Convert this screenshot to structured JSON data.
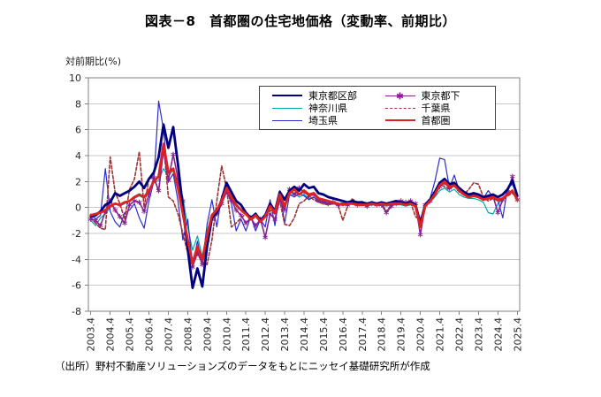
{
  "source": "（出所）野村不動産ソリューションズのデータをもとにニッセイ基礎研究所が作成",
  "chart_data": {
    "type": "line",
    "title": "図表－8　首都圏の住宅地価格（変動率、前期比）",
    "ylabel": "対前期比(%)",
    "xlabel": "",
    "ylim": [
      -8,
      10
    ],
    "y_ticks": [
      10,
      8,
      6,
      4,
      2,
      0,
      -2,
      -4,
      -6,
      -8
    ],
    "grid": true,
    "legend_position": "top-inside",
    "x_frequency": "quarterly",
    "x_start": "2003.4",
    "x_end": "2025.4",
    "x_tick_labels": [
      "2003.4",
      "2004.4",
      "2005.4",
      "2006.4",
      "2007.4",
      "2008.4",
      "2009.4",
      "2010.4",
      "2011.4",
      "2012.4",
      "2013.4",
      "2014.4",
      "2015.4",
      "2016.4",
      "2017.4",
      "2018.4",
      "2019.4",
      "2020.4",
      "2021.4",
      "2022.4",
      "2023.4",
      "2024.4",
      "2025.4"
    ],
    "draw_order": [
      "神奈川県",
      "埼玉県",
      "千葉県",
      "東京都下",
      "東京都区部",
      "首都圏"
    ],
    "series": [
      {
        "name": "東京都区部",
        "color": "#000080",
        "width": 2.8,
        "style": "solid",
        "marker": "none",
        "values": [
          -0.7,
          -0.6,
          -0.3,
          0.2,
          0.4,
          1.1,
          0.9,
          1.1,
          1.3,
          1.6,
          2.0,
          1.5,
          2.2,
          2.7,
          3.9,
          6.4,
          4.6,
          6.2,
          3.3,
          0.0,
          -3.2,
          -6.2,
          -4.7,
          -6.1,
          -3.0,
          -0.8,
          -0.4,
          0.6,
          1.9,
          1.2,
          0.5,
          0.2,
          -0.4,
          -0.8,
          -0.5,
          -1.0,
          -0.6,
          0.3,
          -0.3,
          1.2,
          0.6,
          1.3,
          1.6,
          1.3,
          1.8,
          1.5,
          1.6,
          1.1,
          1.0,
          0.8,
          0.7,
          0.6,
          0.5,
          0.4,
          0.5,
          0.4,
          0.4,
          0.3,
          0.4,
          0.3,
          0.4,
          0.3,
          0.4,
          0.5,
          0.4,
          0.3,
          0.4,
          0.2,
          -1.2,
          0.2,
          0.6,
          1.2,
          1.9,
          2.2,
          1.8,
          1.9,
          1.5,
          1.2,
          1.0,
          1.1,
          1.0,
          0.8,
          0.9,
          1.0,
          0.8,
          1.0,
          1.4,
          2.1,
          0.9
        ]
      },
      {
        "name": "神奈川県",
        "color": "#00A8A8",
        "width": 1.2,
        "style": "solid",
        "marker": "none",
        "values": [
          -1.0,
          -1.4,
          -0.8,
          -0.5,
          0.0,
          0.3,
          0.1,
          0.3,
          0.5,
          0.7,
          0.9,
          0.7,
          1.4,
          1.9,
          2.1,
          3.0,
          2.4,
          2.9,
          2.0,
          0.8,
          -1.5,
          -3.3,
          -2.2,
          -3.8,
          -1.8,
          -0.5,
          -0.2,
          0.4,
          1.2,
          0.7,
          0.1,
          -0.2,
          -0.5,
          -0.8,
          -0.4,
          -0.9,
          -0.5,
          0.2,
          -0.2,
          0.8,
          0.2,
          0.9,
          1.1,
          0.8,
          1.0,
          0.7,
          0.8,
          0.5,
          0.4,
          0.4,
          0.3,
          0.3,
          0.2,
          0.3,
          0.3,
          0.2,
          0.2,
          0.1,
          0.2,
          0.2,
          0.2,
          0.1,
          0.2,
          0.2,
          0.2,
          0.1,
          0.2,
          0.1,
          -0.9,
          0.1,
          0.4,
          0.8,
          1.3,
          1.5,
          1.2,
          1.4,
          1.0,
          0.8,
          0.7,
          0.7,
          0.6,
          0.4,
          -0.4,
          -0.5,
          0.3,
          0.6,
          1.0,
          1.2,
          0.5
        ]
      },
      {
        "name": "埼玉県",
        "color": "#2D2DCB",
        "width": 1.2,
        "style": "solid",
        "marker": "none",
        "values": [
          -0.5,
          -0.9,
          -0.6,
          3.0,
          -0.3,
          -1.1,
          -1.5,
          -0.4,
          -0.2,
          0.3,
          -0.8,
          -1.6,
          0.5,
          2.0,
          8.2,
          6.0,
          2.0,
          2.6,
          0.5,
          -2.5,
          -0.9,
          -4.5,
          -2.6,
          -4.4,
          -1.3,
          0.6,
          -1.5,
          0.9,
          1.4,
          0.3,
          -1.8,
          -0.9,
          -1.8,
          -0.7,
          -1.8,
          -0.9,
          -1.5,
          0.6,
          -1.4,
          1.3,
          -1.2,
          1.0,
          0.8,
          1.1,
          0.9,
          0.6,
          0.8,
          0.4,
          0.5,
          0.3,
          0.4,
          0.2,
          0.3,
          0.2,
          0.3,
          0.3,
          0.2,
          0.2,
          0.3,
          0.2,
          0.3,
          0.2,
          0.3,
          0.4,
          0.3,
          0.2,
          0.4,
          0.2,
          -1.3,
          0.3,
          0.7,
          2.0,
          3.8,
          3.7,
          1.5,
          2.5,
          1.3,
          1.0,
          0.9,
          1.1,
          0.9,
          0.7,
          1.3,
          0.8,
          0.6,
          -0.8,
          1.5,
          1.8,
          0.9
        ]
      },
      {
        "name": "東京都下",
        "color": "#8A2090",
        "width": 1.6,
        "style": "solid",
        "marker": "star",
        "values": [
          -0.9,
          -1.0,
          -1.4,
          -0.3,
          0.5,
          -0.2,
          -0.7,
          -1.2,
          0.2,
          0.5,
          0.4,
          -0.3,
          1.0,
          2.3,
          1.3,
          4.4,
          2.1,
          4.1,
          2.2,
          0.5,
          -2.8,
          -4.6,
          -3.4,
          -4.4,
          -2.5,
          -0.9,
          -0.5,
          0.3,
          1.2,
          0.6,
          -0.2,
          -0.6,
          -1.2,
          -0.8,
          -1.4,
          -0.9,
          -2.3,
          -0.5,
          -0.9,
          0.6,
          -0.2,
          1.4,
          1.0,
          1.5,
          1.2,
          0.9,
          1.0,
          0.6,
          0.4,
          0.3,
          0.4,
          0.2,
          0.3,
          0.2,
          0.4,
          0.2,
          0.3,
          0.1,
          0.3,
          0.2,
          0.2,
          -0.4,
          0.1,
          0.3,
          0.5,
          0.4,
          0.5,
          0.3,
          -2.1,
          0.2,
          0.5,
          1.1,
          1.6,
          1.9,
          1.5,
          1.8,
          1.4,
          1.1,
          0.9,
          1.0,
          0.9,
          0.7,
          0.8,
          0.9,
          -0.4,
          0.6,
          1.2,
          2.4,
          0.6
        ]
      },
      {
        "name": "千葉県",
        "color": "#A03232",
        "width": 1.6,
        "style": "dashed",
        "marker": "none",
        "values": [
          -0.8,
          -1.2,
          -1.6,
          -1.7,
          3.9,
          1.2,
          0.3,
          -0.9,
          1.4,
          2.2,
          4.3,
          0.0,
          2.2,
          2.4,
          1.2,
          4.9,
          0.8,
          0.5,
          -0.5,
          -2.0,
          -3.5,
          -4.5,
          -3.6,
          -4.2,
          -4.4,
          -2.5,
          0.5,
          3.2,
          1.5,
          -1.5,
          -1.2,
          -0.8,
          -0.5,
          -1.0,
          -0.7,
          -1.1,
          -0.6,
          -0.2,
          -0.5,
          0.5,
          -1.3,
          -1.4,
          -0.8,
          0.3,
          0.5,
          0.9,
          0.6,
          0.4,
          0.3,
          0.2,
          0.3,
          0.2,
          -1.0,
          0.1,
          0.7,
          0.2,
          0.2,
          0.1,
          0.3,
          0.2,
          0.3,
          -0.3,
          0.2,
          0.4,
          0.3,
          0.2,
          0.4,
          -0.7,
          -1.0,
          0.2,
          0.6,
          1.2,
          1.8,
          1.6,
          1.4,
          1.7,
          1.2,
          1.0,
          1.4,
          1.9,
          1.8,
          0.8,
          0.5,
          0.7,
          0.5,
          0.6,
          0.9,
          1.1,
          0.7
        ]
      },
      {
        "name": "首都圏",
        "color": "#DD2222",
        "width": 2.8,
        "style": "solid",
        "marker": "none",
        "values": [
          -0.6,
          -0.5,
          -0.4,
          -0.2,
          0.1,
          0.3,
          0.2,
          0.4,
          0.5,
          0.8,
          1.0,
          0.8,
          1.3,
          2.0,
          2.4,
          4.9,
          2.7,
          3.0,
          1.5,
          -0.5,
          -2.5,
          -4.3,
          -3.0,
          -4.0,
          -2.2,
          -0.6,
          -0.2,
          0.5,
          1.5,
          0.8,
          0.2,
          -0.2,
          -0.5,
          -0.9,
          -0.6,
          -1.1,
          -0.7,
          0.1,
          -0.4,
          1.0,
          0.1,
          1.1,
          1.4,
          1.0,
          1.3,
          1.0,
          1.1,
          0.7,
          0.6,
          0.5,
          0.4,
          0.3,
          0.2,
          0.3,
          0.3,
          0.2,
          0.2,
          0.2,
          0.3,
          0.2,
          0.3,
          0.2,
          0.3,
          0.3,
          0.3,
          0.2,
          0.3,
          0.1,
          -1.5,
          0.1,
          0.5,
          1.0,
          1.7,
          2.0,
          1.6,
          1.7,
          1.3,
          1.0,
          0.8,
          0.9,
          0.8,
          0.6,
          0.7,
          0.8,
          0.6,
          0.7,
          1.0,
          1.3,
          0.6
        ]
      }
    ]
  }
}
